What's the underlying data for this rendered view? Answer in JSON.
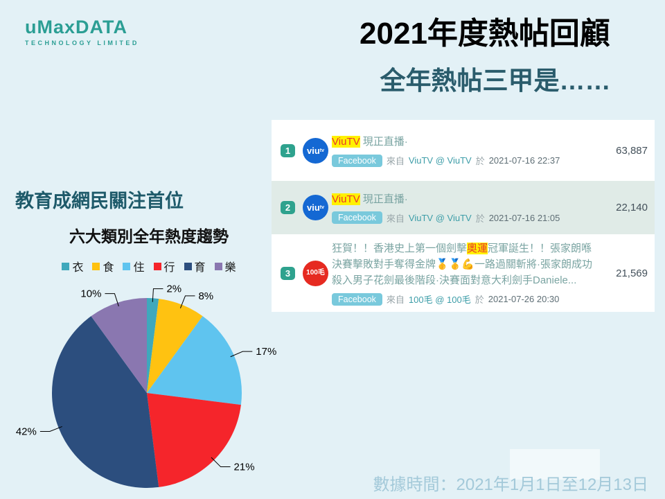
{
  "page": {
    "background": "#E3F1F6"
  },
  "logo": {
    "name": "uMaxDATA",
    "subtitle": "TECHNOLOGY LIMITED",
    "color": "#2B9E94"
  },
  "header": {
    "title": "2021年度熱帖回顧",
    "subtitle": "全年熱帖三甲是……"
  },
  "left": {
    "heading": "教育成網民關注首位"
  },
  "chart_data": {
    "type": "pie",
    "title": "六大類別全年熱度趨勢",
    "categories": [
      "衣",
      "食",
      "住",
      "行",
      "育",
      "樂"
    ],
    "values": [
      2,
      8,
      17,
      21,
      42,
      10
    ],
    "labels": [
      "2%",
      "8%",
      "17%",
      "21%",
      "42%",
      "10%"
    ],
    "colors": [
      "#3FA8BC",
      "#FFC211",
      "#5FC4EF",
      "#F5252B",
      "#2C4E7E",
      "#8A77B0"
    ],
    "legend_position": "top",
    "start_angle_deg": 0,
    "direction": "clockwise"
  },
  "posts": {
    "rows": [
      {
        "rank": "1",
        "avatar": {
          "bg": "#1468D3",
          "label": "viu",
          "sup": "tv"
        },
        "title": {
          "pre": "",
          "highlight": "ViuTV",
          "post": " 現正直播·"
        },
        "platform": "Facebook",
        "from_label": "來自",
        "source": "ViuTV @ ViuTV",
        "on_label": "於",
        "datetime": "2021-07-16 22:37",
        "count": "63,887"
      },
      {
        "rank": "2",
        "avatar": {
          "bg": "#1468D3",
          "label": "viu",
          "sup": "tv"
        },
        "title": {
          "pre": "",
          "highlight": "ViuTV",
          "post": " 現正直播·"
        },
        "platform": "Facebook",
        "from_label": "來自",
        "source": "ViuTV @ ViuTV",
        "on_label": "於",
        "datetime": "2021-07-16 21:05",
        "count": "22,140"
      },
      {
        "rank": "3",
        "avatar": {
          "bg": "#E62A21",
          "label": "100毛"
        },
        "title": {
          "pre": "狂賀！！香港史上第一個劍擊",
          "highlight": "奧運",
          "post": "冠軍誕生！！張家朗喺決賽擊敗對手奪得金牌🥇🥇💪一路過關斬將·張家朗成功殺入男子花劍最後階段·決賽面對意大利劍手Daniele..."
        },
        "platform": "Facebook",
        "from_label": "來自",
        "source": "100毛 @ 100毛",
        "on_label": "於",
        "datetime": "2021-07-26 20:30",
        "count": "21,569"
      }
    ]
  },
  "footer": {
    "text": "數據時間：2021年1月1日至12月13日"
  }
}
